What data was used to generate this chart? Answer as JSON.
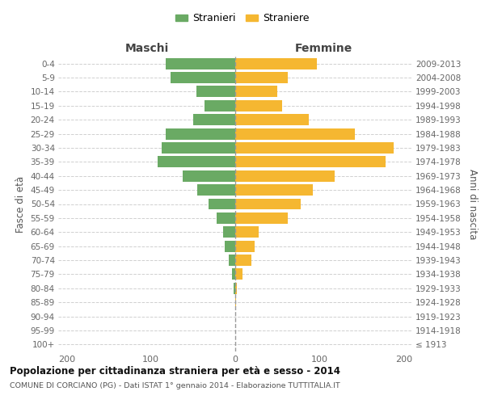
{
  "age_groups": [
    "100+",
    "95-99",
    "90-94",
    "85-89",
    "80-84",
    "75-79",
    "70-74",
    "65-69",
    "60-64",
    "55-59",
    "50-54",
    "45-49",
    "40-44",
    "35-39",
    "30-34",
    "25-29",
    "20-24",
    "15-19",
    "10-14",
    "5-9",
    "0-4"
  ],
  "birth_years": [
    "≤ 1913",
    "1914-1918",
    "1919-1923",
    "1924-1928",
    "1929-1933",
    "1934-1938",
    "1939-1943",
    "1944-1948",
    "1949-1953",
    "1954-1958",
    "1959-1963",
    "1964-1968",
    "1969-1973",
    "1974-1978",
    "1979-1983",
    "1984-1988",
    "1989-1993",
    "1994-1998",
    "1999-2003",
    "2004-2008",
    "2009-2013"
  ],
  "maschi": [
    0,
    0,
    0,
    0,
    2,
    4,
    8,
    12,
    14,
    22,
    32,
    45,
    62,
    92,
    87,
    82,
    50,
    36,
    46,
    77,
    82
  ],
  "femmine": [
    0,
    0,
    0,
    1,
    2,
    9,
    19,
    23,
    28,
    62,
    78,
    92,
    118,
    178,
    188,
    142,
    87,
    56,
    50,
    62,
    97
  ],
  "color_maschi": "#6aaa64",
  "color_femmine": "#f5b731",
  "title_main": "Popolazione per cittadinanza straniera per età e sesso - 2014",
  "title_sub": "COMUNE DI CORCIANO (PG) - Dati ISTAT 1° gennaio 2014 - Elaborazione TUTTITALIA.IT",
  "label_left": "Maschi",
  "label_right": "Femmine",
  "ylabel_left": "Fasce di età",
  "ylabel_right": "Anni di nascita",
  "legend_maschi": "Stranieri",
  "legend_femmine": "Straniere",
  "xlim": 210,
  "background_color": "#ffffff",
  "grid_color": "#d0d0d0",
  "bar_height": 0.8
}
